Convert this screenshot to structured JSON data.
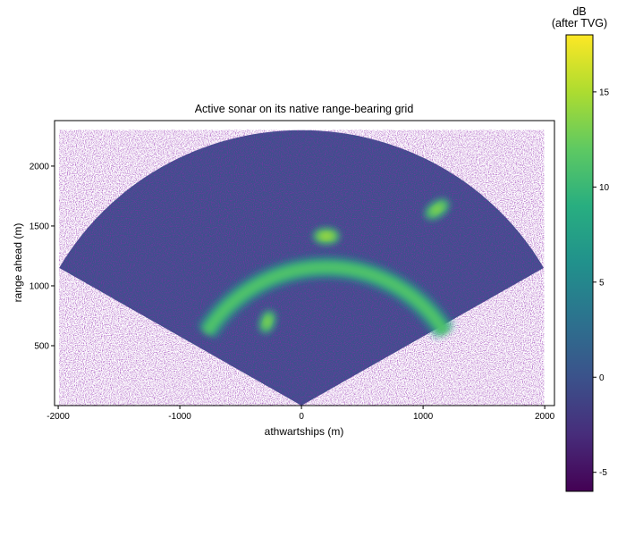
{
  "chart_data": {
    "type": "heatmap",
    "title": "Active sonar on its native range-bearing grid",
    "xlabel": "athwartships (m)",
    "ylabel": "range ahead (m)",
    "xlim": [
      -2030,
      2080
    ],
    "ylim": [
      0,
      2380
    ],
    "x_ticks": [
      {
        "value": -2000,
        "label": "-2000"
      },
      {
        "value": -1000,
        "label": "-1000"
      },
      {
        "value": 0,
        "label": "0"
      },
      {
        "value": 1000,
        "label": "1000"
      },
      {
        "value": 2000,
        "label": "2000"
      }
    ],
    "y_ticks": [
      {
        "value": 500,
        "label": "500"
      },
      {
        "value": 1000,
        "label": "1000"
      },
      {
        "value": 1500,
        "label": "1500"
      },
      {
        "value": 2000,
        "label": "2000"
      }
    ],
    "grid": false,
    "colormap": "viridis",
    "colorbar": {
      "title_line1": "dB",
      "title_line2": "(after TVG)",
      "min": -6,
      "max": 18,
      "ticks": [
        {
          "value": -5,
          "label": "-5"
        },
        {
          "value": 0,
          "label": "0"
        },
        {
          "value": 5,
          "label": "5"
        },
        {
          "value": 10,
          "label": "10"
        },
        {
          "value": 15,
          "label": "15"
        }
      ],
      "colors": [
        "#440154",
        "#472d7b",
        "#3b528b",
        "#2c728e",
        "#21918c",
        "#28ae80",
        "#5ec962",
        "#addc30",
        "#fde725"
      ]
    },
    "sector": {
      "max_range": 2300,
      "half_angle_deg": 60
    },
    "background_db": 0,
    "features": [
      {
        "kind": "arc",
        "center_x": 200,
        "center_y": 0,
        "radius": 1155,
        "angle_start_deg": 32,
        "angle_end_deg": 148,
        "peak_db": 12
      },
      {
        "kind": "blob",
        "x": 205,
        "y": 1415,
        "rx": 90,
        "ry": 50,
        "peak_db": 15
      },
      {
        "kind": "blob",
        "x": 1115,
        "y": 1640,
        "rx": 95,
        "ry": 48,
        "rotation_deg": -35,
        "peak_db": 14
      },
      {
        "kind": "blob",
        "x": -280,
        "y": 700,
        "rx": 45,
        "ry": 80,
        "rotation_deg": 20,
        "peak_db": 14
      }
    ]
  }
}
